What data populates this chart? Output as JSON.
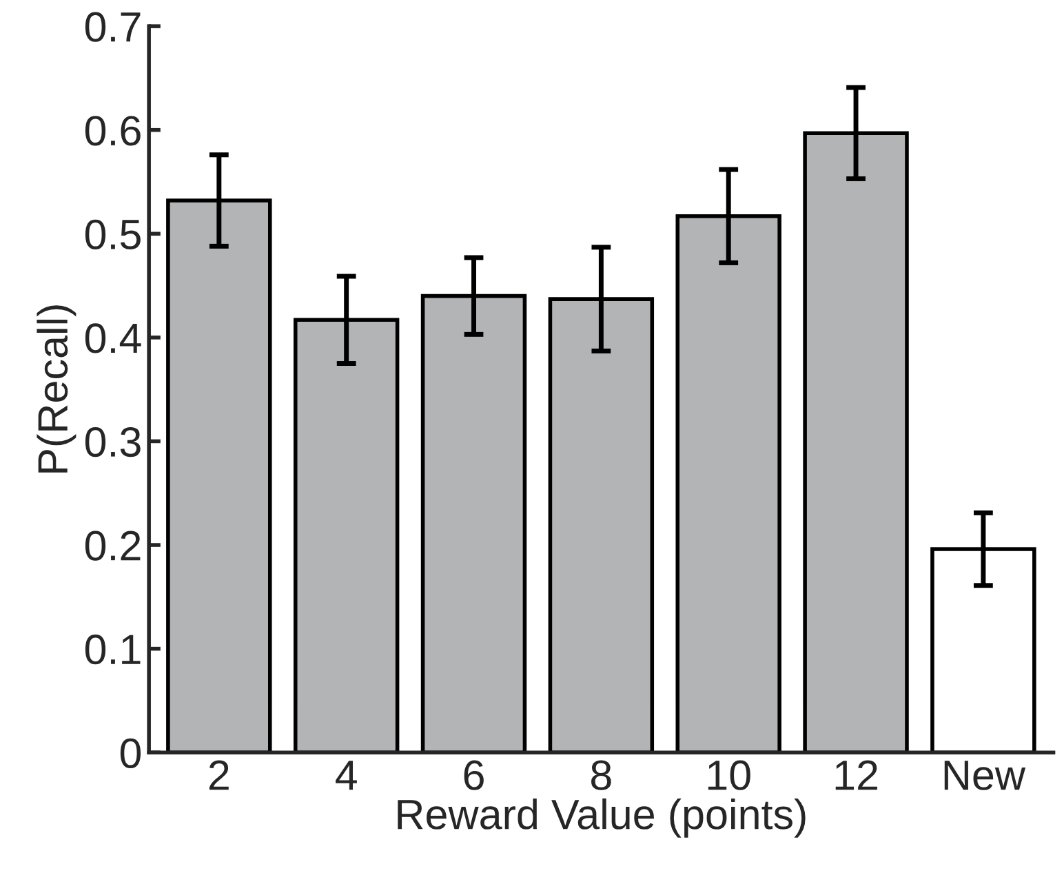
{
  "chart_data": {
    "type": "bar",
    "xlabel": "Reward Value (points)",
    "ylabel": "P(Recall)",
    "categories": [
      "2",
      "4",
      "6",
      "8",
      "10",
      "12",
      "New"
    ],
    "values": [
      0.532,
      0.417,
      0.44,
      0.437,
      0.517,
      0.597,
      0.196
    ],
    "errors": [
      0.044,
      0.042,
      0.037,
      0.05,
      0.045,
      0.044,
      0.035
    ],
    "colors": [
      "#b3b4b6",
      "#b3b4b6",
      "#b3b4b6",
      "#b3b4b6",
      "#b3b4b6",
      "#b3b4b6",
      "#ffffff"
    ],
    "ylim": [
      0,
      0.7
    ],
    "yticks": [
      {
        "value": 0,
        "label": "0"
      },
      0.1,
      0.2,
      0.3,
      0.4,
      0.5,
      0.6,
      0.7
    ],
    "grid": false
  }
}
